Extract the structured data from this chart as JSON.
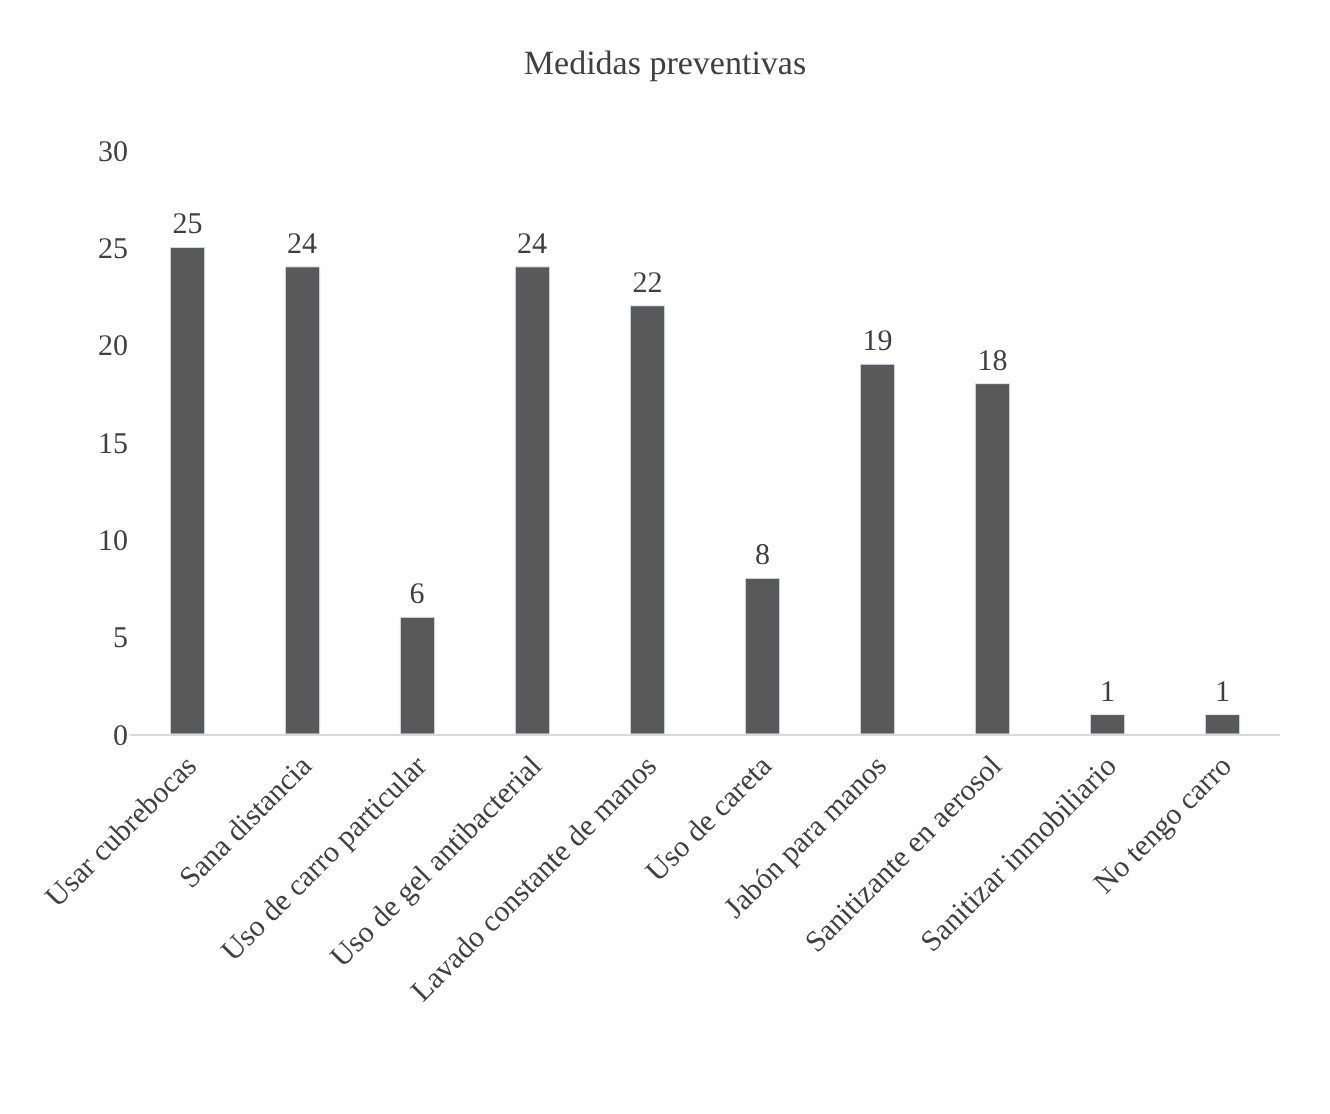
{
  "chart_data": {
    "type": "bar",
    "title": "Medidas preventivas",
    "categories": [
      "Usar cubrebocas",
      "Sana distancia",
      "Uso de carro particular",
      "Uso de gel antibacterial",
      "Lavado constante de manos",
      "Uso de careta",
      "Jabón para manos",
      "Sanitizante en aerosol",
      "Sanitizar inmobiliario",
      "No tengo carro"
    ],
    "values": [
      25,
      24,
      6,
      24,
      22,
      8,
      19,
      18,
      1,
      1
    ],
    "color": "#595959",
    "ylim": [
      0,
      30
    ],
    "yticks": [
      0,
      5,
      10,
      15,
      20,
      25,
      30
    ],
    "data_labels": true,
    "legend": false
  }
}
